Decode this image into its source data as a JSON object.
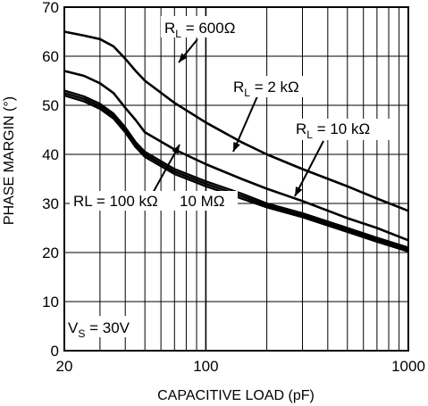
{
  "chart_data": {
    "type": "line",
    "xlabel": "CAPACITIVE LOAD (pF)",
    "ylabel": "PHASE MARGIN (°)",
    "x_scale": "log",
    "xlim": [
      20,
      1000
    ],
    "ylim": [
      0,
      70
    ],
    "grid": true,
    "x_ticks": [
      "20",
      "100",
      "1000"
    ],
    "y_ticks": [
      "0",
      "10",
      "20",
      "30",
      "40",
      "50",
      "60",
      "70"
    ],
    "series": [
      {
        "name": "RL = 600Ω",
        "x": [
          20,
          25,
          30,
          35,
          40,
          45,
          50,
          70,
          100,
          150,
          200,
          300,
          500,
          700,
          1000
        ],
        "y": [
          65,
          64.2,
          63.5,
          62,
          59.5,
          57,
          55,
          50.5,
          46.5,
          42.5,
          40,
          37,
          33.5,
          31,
          28.5
        ]
      },
      {
        "name": "RL = 2 kΩ",
        "x": [
          20,
          25,
          30,
          35,
          40,
          45,
          50,
          70,
          100,
          150,
          200,
          300,
          500,
          700,
          1000
        ],
        "y": [
          57,
          56,
          54.5,
          52.5,
          49.5,
          47,
          44.5,
          41,
          38,
          35,
          33,
          30.5,
          27,
          25,
          22.5
        ]
      },
      {
        "name": "RL = 10 kΩ",
        "x": [
          20,
          25,
          30,
          35,
          40,
          45,
          50,
          70,
          100,
          150,
          200,
          300,
          500,
          700,
          1000
        ],
        "y": [
          53,
          51.8,
          50.3,
          48.3,
          45.5,
          42.5,
          40.5,
          37,
          34.5,
          32,
          30,
          28,
          25,
          23,
          21
        ]
      },
      {
        "name": "RL = 100 kΩ",
        "x": [
          20,
          25,
          30,
          35,
          40,
          45,
          50,
          70,
          100,
          150,
          200,
          300,
          500,
          700,
          1000
        ],
        "y": [
          52.5,
          51.3,
          49.8,
          47.8,
          45,
          42,
          40,
          36.5,
          34,
          31.5,
          29.6,
          27.6,
          24.6,
          22.6,
          20.6
        ]
      },
      {
        "name": "10 MΩ",
        "x": [
          20,
          25,
          30,
          35,
          40,
          45,
          50,
          70,
          100,
          150,
          200,
          300,
          500,
          700,
          1000
        ],
        "y": [
          52,
          50.8,
          49.3,
          47.3,
          44.5,
          41.5,
          39.5,
          36,
          33.5,
          31,
          29.2,
          27.2,
          24.2,
          22.2,
          20.2
        ]
      }
    ],
    "annotations": {
      "rl600": {
        "main": "R",
        "sub": "L",
        "rest": " = 600Ω"
      },
      "rl2k": {
        "main": "R",
        "sub": "L",
        "rest": " = 2 kΩ"
      },
      "rl10k": {
        "main": "R",
        "sub": "L",
        "rest": " = 10 kΩ"
      },
      "rl100k": "RL = 100 kΩ",
      "r10m": "10 MΩ",
      "vs": {
        "main": "V",
        "sub": "S",
        "rest": " = 30V"
      }
    }
  }
}
